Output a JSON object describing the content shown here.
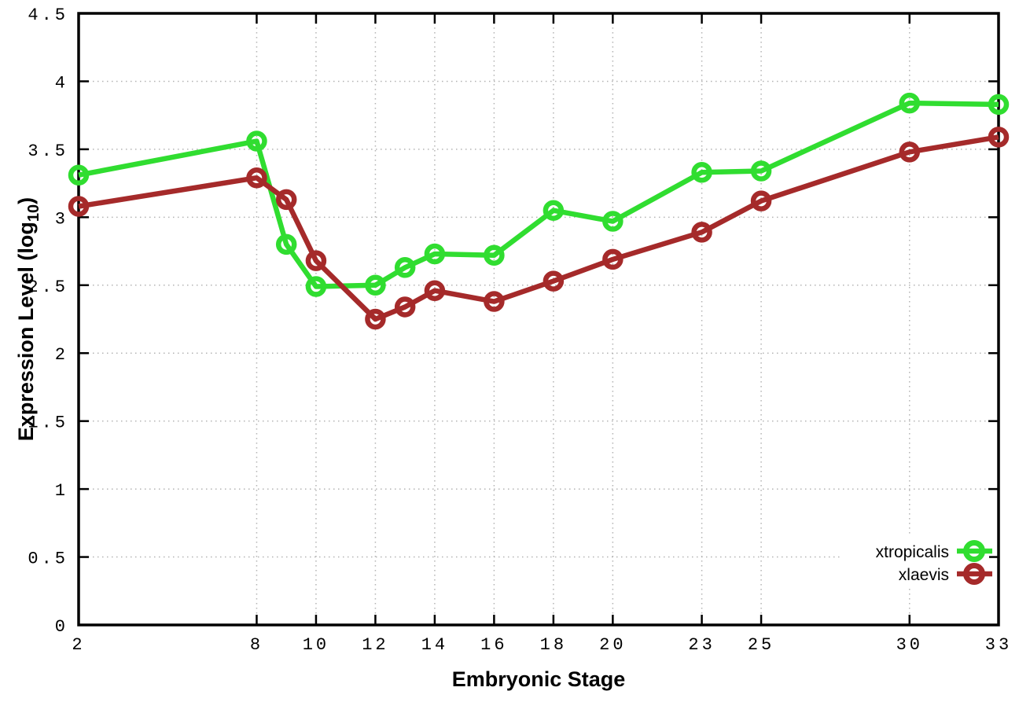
{
  "chart_data": {
    "type": "line",
    "title": "",
    "xlabel": "Embryonic Stage",
    "ylabel": "Expression Level (log10)",
    "ylabel_parts": {
      "main": "Expression Level (log",
      "sub": "10",
      "close": ")"
    },
    "xlim": [
      2,
      33
    ],
    "ylim": [
      0,
      4.5
    ],
    "xticks": [
      2,
      8,
      10,
      12,
      14,
      16,
      18,
      20,
      23,
      25,
      30,
      33
    ],
    "yticks": [
      0,
      0.5,
      1,
      1.5,
      2,
      2.5,
      3,
      3.5,
      4,
      4.5
    ],
    "grid": true,
    "legend_position": "bottom-right",
    "marker": "open-circle",
    "x": [
      2,
      8,
      9,
      10,
      12,
      13,
      14,
      16,
      18,
      20,
      23,
      25,
      30,
      33
    ],
    "series": [
      {
        "name": "xtropicalis",
        "color": "#30dd30",
        "values": [
          3.31,
          3.56,
          2.8,
          2.49,
          2.5,
          2.63,
          2.73,
          2.72,
          3.05,
          2.97,
          3.33,
          3.34,
          3.84,
          3.83
        ]
      },
      {
        "name": "xlaevis",
        "color": "#a52a2a",
        "values": [
          3.08,
          3.29,
          3.13,
          2.68,
          2.25,
          2.34,
          2.46,
          2.38,
          2.53,
          2.69,
          2.89,
          3.12,
          3.48,
          3.59
        ]
      }
    ]
  }
}
